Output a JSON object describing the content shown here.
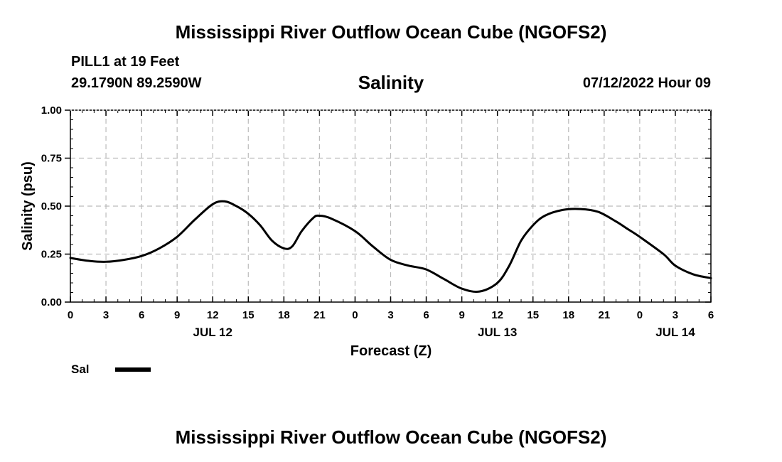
{
  "header": {
    "title": "Mississippi River Outflow Ocean Cube (NGOFS2)",
    "station": "PILL1 at 19 Feet",
    "coords": "29.1790N  89.2590W",
    "subtitle": "Salinity",
    "datetime": "07/12/2022 Hour 09"
  },
  "footer": {
    "title": "Mississippi River Outflow Ocean Cube (NGOFS2)"
  },
  "legend": {
    "label": "Sal",
    "color": "#000000"
  },
  "chart_data": {
    "type": "line",
    "title": "Salinity",
    "xlabel": "Forecast (Z)",
    "ylabel": "Salinity (psu)",
    "xlim": [
      0,
      54
    ],
    "ylim": [
      0,
      1
    ],
    "xticks": [
      0,
      3,
      6,
      9,
      12,
      15,
      18,
      21,
      24,
      27,
      30,
      33,
      36,
      39,
      42,
      45,
      48,
      51,
      54
    ],
    "xtick_labels": [
      "0",
      "3",
      "6",
      "9",
      "12",
      "15",
      "18",
      "21",
      "0",
      "3",
      "6",
      "9",
      "12",
      "15",
      "18",
      "21",
      "0",
      "3",
      "6"
    ],
    "yticks": [
      0,
      0.25,
      0.5,
      0.75,
      1.0
    ],
    "ytick_labels": [
      "0.00",
      "0.25",
      "0.50",
      "0.75",
      "1.00"
    ],
    "day_labels": [
      {
        "x": 12,
        "label": "JUL 12"
      },
      {
        "x": 36,
        "label": "JUL 13"
      },
      {
        "x": 51,
        "label": "JUL 14"
      }
    ],
    "grid": true,
    "series": [
      {
        "name": "Sal",
        "color": "#000000",
        "x": [
          0,
          1.5,
          3,
          4.5,
          6,
          7.5,
          9,
          10.5,
          12,
          13,
          14,
          15,
          16,
          17,
          18,
          18.7,
          19.5,
          20.5,
          21,
          22,
          24,
          25.5,
          27,
          28.5,
          30,
          31.5,
          33,
          34.5,
          36,
          37,
          38,
          39,
          40,
          41.5,
          43,
          44.5,
          46,
          47,
          48,
          50,
          51,
          52.5,
          54
        ],
        "values": [
          0.23,
          0.215,
          0.21,
          0.22,
          0.24,
          0.28,
          0.34,
          0.43,
          0.51,
          0.525,
          0.5,
          0.46,
          0.4,
          0.32,
          0.28,
          0.29,
          0.37,
          0.44,
          0.45,
          0.435,
          0.37,
          0.29,
          0.22,
          0.19,
          0.17,
          0.12,
          0.07,
          0.055,
          0.1,
          0.19,
          0.32,
          0.4,
          0.45,
          0.48,
          0.485,
          0.47,
          0.42,
          0.38,
          0.34,
          0.25,
          0.19,
          0.145,
          0.125
        ]
      }
    ]
  }
}
